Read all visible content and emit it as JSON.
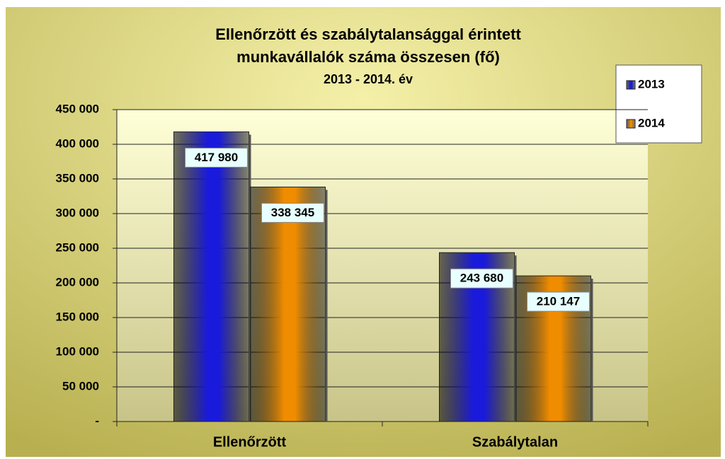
{
  "chart_data": {
    "type": "bar",
    "title": [
      "Ellenőrzött és szabálytalansággal érintett",
      "munkavállalók száma összesen (fő)"
    ],
    "subtitle": "2013 - 2014. év",
    "categories": [
      "Ellenőrzött",
      "Szabálytalan"
    ],
    "series": [
      {
        "name": "2013",
        "color": "#1a1adc",
        "values": [
          417980,
          243680
        ],
        "value_labels": [
          "417 980",
          "243 680"
        ]
      },
      {
        "name": "2014",
        "color": "#f08c00",
        "values": [
          338345,
          210147
        ],
        "value_labels": [
          "338 345",
          "210 147"
        ]
      }
    ],
    "ylim": [
      0,
      450000
    ],
    "yticks": [
      {
        "value": 0,
        "label": "-"
      },
      {
        "value": 50000,
        "label": "50 000"
      },
      {
        "value": 100000,
        "label": "100 000"
      },
      {
        "value": 150000,
        "label": "150 000"
      },
      {
        "value": 200000,
        "label": "200 000"
      },
      {
        "value": 250000,
        "label": "250 000"
      },
      {
        "value": 300000,
        "label": "300 000"
      },
      {
        "value": 350000,
        "label": "350 000"
      },
      {
        "value": 400000,
        "label": "400 000"
      },
      {
        "value": 450000,
        "label": "450 000"
      }
    ],
    "grid": true,
    "legend": "upper right"
  }
}
